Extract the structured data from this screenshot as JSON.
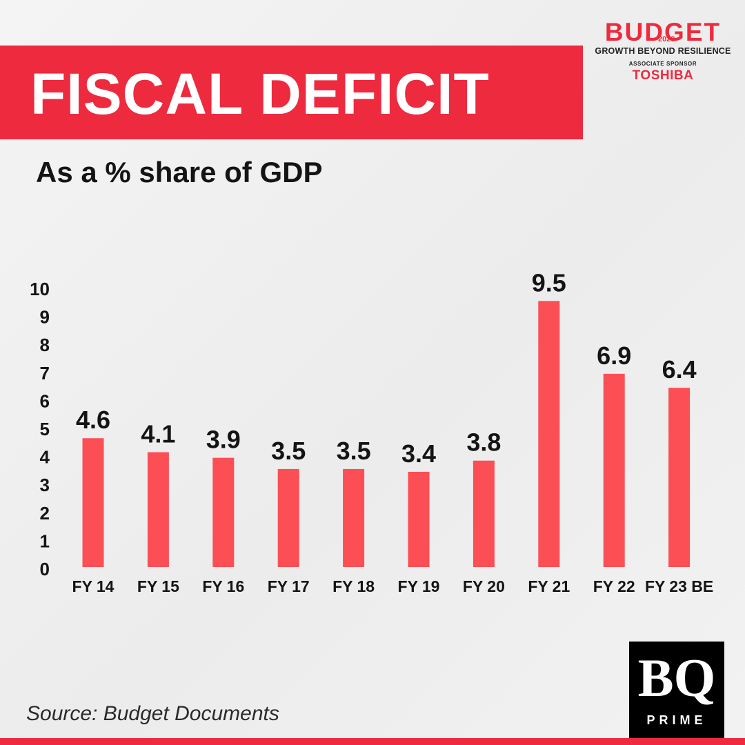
{
  "header": {
    "title": "FISCAL DEFICIT",
    "subtitle": "As a % share of GDP"
  },
  "brand": {
    "title": "BUDGET",
    "year": "2023",
    "tagline": "GROWTH BEYOND RESILIENCE",
    "sponsor_label": "ASSOCIATE SPONSOR",
    "sponsor": "TOSHIBA"
  },
  "footer": {
    "source": "Source: Budget Documents",
    "logo_mark": "BQ",
    "logo_sub": "PRIME"
  },
  "colors": {
    "accent": "#ee2a3f",
    "bar": "#fb4f55",
    "text": "#141414"
  },
  "chart_data": {
    "type": "bar",
    "title": "FISCAL DEFICIT",
    "subtitle": "As a % share of GDP",
    "xlabel": "",
    "ylabel": "",
    "categories": [
      "FY 14",
      "FY 15",
      "FY 16",
      "FY 17",
      "FY 18",
      "FY 19",
      "FY 20",
      "FY 21",
      "FY 22",
      "FY 23 BE"
    ],
    "values": [
      4.6,
      4.1,
      3.9,
      3.5,
      3.5,
      3.4,
      3.8,
      9.5,
      6.9,
      6.4
    ],
    "data_labels": [
      "4.6",
      "4.1",
      "3.9",
      "3.5",
      "3.5",
      "3.4",
      "3.8",
      "9.5",
      "6.9",
      "6.4"
    ],
    "yticks": [
      0,
      1,
      2,
      3,
      4,
      5,
      6,
      7,
      8,
      9,
      10
    ],
    "ylim": [
      0,
      10
    ],
    "grid": false,
    "legend": "none"
  }
}
